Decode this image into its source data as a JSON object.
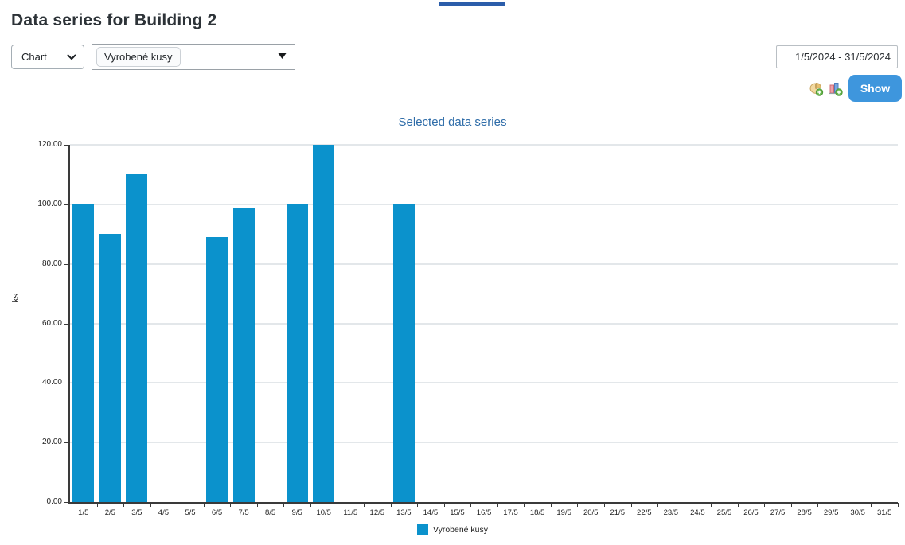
{
  "page": {
    "title": "Data series for Building 2"
  },
  "toolbar": {
    "chart_type_select": {
      "value": "Chart"
    },
    "series_select": {
      "selected_tag": "Vyrobené kusy"
    },
    "date_range": {
      "value": "1/5/2024 - 31/5/2024"
    },
    "show_button_label": "Show",
    "icon_names": [
      "chart-pie-add-icon",
      "chart-bar-add-icon"
    ]
  },
  "colors": {
    "bar": "#0b92cc",
    "grid": "#e3e7ea",
    "axis": "#3a3a3a",
    "chart_title": "#2e6ca8",
    "show_button": "#3e96dd",
    "tab_line": "#2b5daa"
  },
  "chart_data": {
    "type": "bar",
    "title": "Selected data series",
    "xlabel": "",
    "ylabel": "ks",
    "ylim": [
      0,
      120
    ],
    "ytick_step": 20,
    "ytick_decimals": 2,
    "grid": true,
    "legend": {
      "position": "bottom",
      "entries": [
        "Vyrobené kusy"
      ]
    },
    "categories": [
      "1/5",
      "2/5",
      "3/5",
      "4/5",
      "5/5",
      "6/5",
      "7/5",
      "8/5",
      "9/5",
      "10/5",
      "11/5",
      "12/5",
      "13/5",
      "14/5",
      "15/5",
      "16/5",
      "17/5",
      "18/5",
      "19/5",
      "20/5",
      "21/5",
      "22/5",
      "23/5",
      "24/5",
      "25/5",
      "26/5",
      "27/5",
      "28/5",
      "29/5",
      "30/5",
      "31/5"
    ],
    "series": [
      {
        "name": "Vyrobené kusy",
        "color": "#0b92cc",
        "values": [
          100,
          90,
          110,
          null,
          null,
          89,
          99,
          null,
          100,
          120,
          null,
          null,
          100,
          null,
          null,
          null,
          null,
          null,
          null,
          null,
          null,
          null,
          null,
          null,
          null,
          null,
          null,
          null,
          null,
          null,
          null
        ]
      }
    ]
  }
}
